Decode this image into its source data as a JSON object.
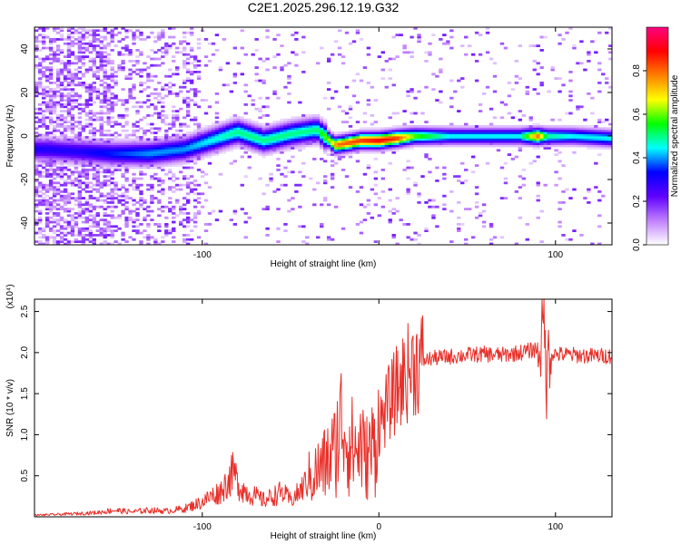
{
  "figure_title": "C2E1.2025.296.12.19.G32",
  "chart_data": [
    {
      "type": "heatmap",
      "id": "spectrogram",
      "title": "C2E1.2025.296.12.19.G32",
      "xlabel": "Height of straight line (km)",
      "ylabel": "Frequency (Hz)",
      "xlim": [
        -195,
        132
      ],
      "ylim": [
        -50,
        50
      ],
      "xticks": [
        -100,
        0,
        100
      ],
      "xtick_labels": [
        "-100",
        "",
        "100"
      ],
      "yticks": [
        -40,
        -20,
        0,
        20,
        40
      ],
      "ytick_labels": [
        "-40",
        "-20",
        "0",
        "20",
        "40"
      ],
      "ridge": {
        "x": [
          -190,
          -170,
          -150,
          -130,
          -110,
          -95,
          -80,
          -65,
          -50,
          -35,
          -25,
          -24,
          -10,
          0,
          10,
          20,
          40,
          60,
          80,
          90,
          95,
          110,
          132
        ],
        "freq": [
          -6,
          -7,
          -8,
          -8,
          -6,
          -2,
          2,
          -2,
          1,
          3,
          -4,
          -4,
          -2,
          -2,
          -1,
          0,
          0,
          0,
          0,
          0,
          0,
          0,
          -1
        ],
        "amplitude": [
          0.3,
          0.3,
          0.35,
          0.4,
          0.4,
          0.45,
          0.5,
          0.5,
          0.5,
          0.5,
          0.7,
          0.8,
          0.85,
          0.9,
          0.85,
          0.6,
          0.45,
          0.45,
          0.45,
          0.8,
          0.5,
          0.45,
          0.45
        ]
      },
      "colorbar": {
        "label": "Normalized spectral amplitude",
        "range": [
          0,
          1
        ],
        "ticks": [
          0.0,
          0.2,
          0.4,
          0.6,
          0.8
        ],
        "tick_labels": [
          "0.0",
          "0.2",
          "0.4",
          "0.6",
          "0.8"
        ],
        "colors": [
          "#ffffff",
          "#c080ff",
          "#6000ff",
          "#0000ff",
          "#00ffff",
          "#00ff00",
          "#ffff00",
          "#ff8000",
          "#ff0000",
          "#ff0080"
        ]
      }
    },
    {
      "type": "line",
      "id": "snr",
      "xlabel": "Height of straight line (km)",
      "ylabel": "SNR (10 * v/v)",
      "multiplier_label": "(x10⁴)",
      "xlim": [
        -195,
        132
      ],
      "ylim": [
        0,
        2.65
      ],
      "xticks": [
        -100,
        0,
        100
      ],
      "xtick_labels": [
        "-100",
        "0",
        "100"
      ],
      "yticks": [
        0.5,
        1.0,
        1.5,
        2.0,
        2.5
      ],
      "ytick_labels": [
        "0.5",
        "1.0",
        "1.5",
        "2.0",
        "2.5"
      ],
      "color": "#e8302a",
      "series": [
        {
          "name": "SNR",
          "x": [
            -195,
            -180,
            -160,
            -150,
            -140,
            -130,
            -120,
            -110,
            -100,
            -95,
            -90,
            -85,
            -82,
            -80,
            -75,
            -70,
            -65,
            -60,
            -55,
            -50,
            -45,
            -40,
            -35,
            -30,
            -25,
            -22,
            -20,
            -18,
            -15,
            -12,
            -10,
            -8,
            -5,
            -2,
            0,
            5,
            10,
            15,
            20,
            25,
            30,
            40,
            50,
            60,
            70,
            80,
            85,
            90,
            92,
            94,
            95,
            96,
            98,
            100,
            110,
            120,
            132
          ],
          "y": [
            0.02,
            0.03,
            0.05,
            0.08,
            0.06,
            0.08,
            0.07,
            0.1,
            0.18,
            0.25,
            0.3,
            0.45,
            0.55,
            0.4,
            0.3,
            0.25,
            0.2,
            0.25,
            0.3,
            0.2,
            0.3,
            0.45,
            0.55,
            0.65,
            0.8,
            1.1,
            1.2,
            0.95,
            0.85,
            0.8,
            0.9,
            0.7,
            0.8,
            0.9,
            1.1,
            1.35,
            1.55,
            1.72,
            1.85,
            1.9,
            1.93,
            1.95,
            1.97,
            1.98,
            1.97,
            2.0,
            2.02,
            2.05,
            2.2,
            2.3,
            1.5,
            2.1,
            2.0,
            1.98,
            1.97,
            1.96,
            1.96
          ]
        }
      ]
    }
  ]
}
